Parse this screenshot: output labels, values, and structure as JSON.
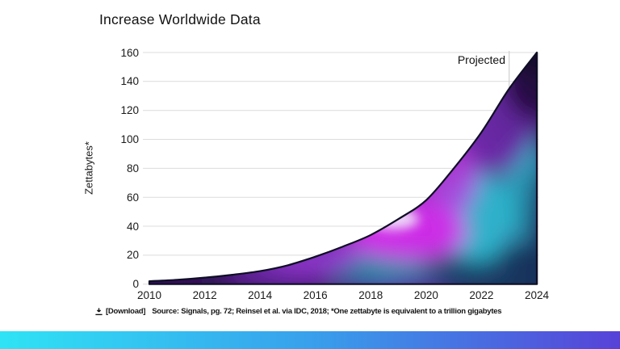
{
  "chart": {
    "title": "Increase Worldwide Data",
    "ylabel": "Zettabytes*",
    "projected_label": "Projected"
  },
  "footer": {
    "download_label": "[Download]",
    "source_text": "Source: Signals, pg. 72; Reinsel et al. via IDC, 2018; *One zettabyte is equivalent to a trillion gigabytes"
  },
  "chart_data": {
    "type": "area",
    "title": "Increase Worldwide Data",
    "xlabel": "",
    "ylabel": "Zettabytes*",
    "x": [
      2010,
      2011,
      2012,
      2013,
      2014,
      2015,
      2016,
      2017,
      2018,
      2019,
      2020,
      2021,
      2022,
      2023,
      2024
    ],
    "values": [
      2,
      3,
      4.5,
      6.5,
      9,
      13,
      19,
      26,
      34,
      45,
      58,
      80,
      105,
      135,
      160
    ],
    "xticks": [
      "2010",
      "2012",
      "2014",
      "2016",
      "2018",
      "2020",
      "2022",
      "2024"
    ],
    "yticks": [
      0,
      20,
      40,
      60,
      80,
      100,
      120,
      140,
      160
    ],
    "xlim": [
      2010,
      2024
    ],
    "ylim": [
      0,
      160
    ],
    "grid": "horizontal",
    "legend": "none",
    "annotation": {
      "label": "Projected",
      "x": 2023
    },
    "fill_style": "aurora gradient (navy / purple / magenta / teal)",
    "line_color": "#0e0e24"
  },
  "colors": {
    "gridline": "#dcdcdc",
    "outline": "#0e0e24",
    "aurora_purple": "#6d28ab",
    "aurora_magenta": "#d32cea",
    "aurora_teal": "#2fc0d4",
    "aurora_navy": "#15355e",
    "bar_gradient_left": "#2fe3f5",
    "bar_gradient_mid": "#38a0ec",
    "bar_gradient_right": "#5742d8"
  }
}
